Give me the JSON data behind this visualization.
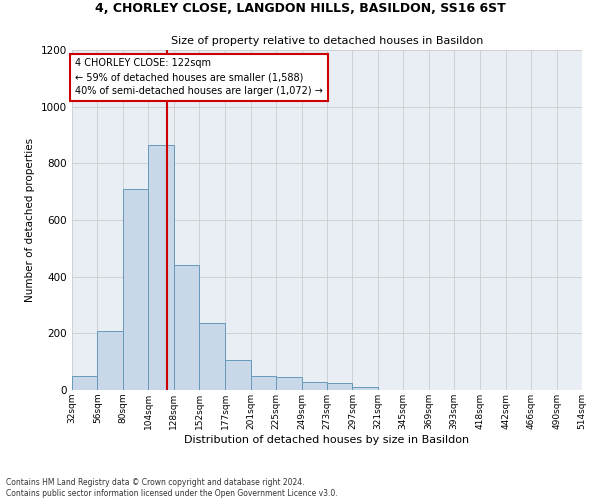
{
  "title1": "4, CHORLEY CLOSE, LANGDON HILLS, BASILDON, SS16 6ST",
  "title2": "Size of property relative to detached houses in Basildon",
  "xlabel": "Distribution of detached houses by size in Basildon",
  "ylabel": "Number of detached properties",
  "footnote": "Contains HM Land Registry data © Crown copyright and database right 2024.\nContains public sector information licensed under the Open Government Licence v3.0.",
  "bar_edges": [
    32,
    56,
    80,
    104,
    128,
    152,
    177,
    201,
    225,
    249,
    273,
    297,
    321,
    345,
    369,
    393,
    418,
    442,
    466,
    490,
    514
  ],
  "bar_heights": [
    50,
    210,
    710,
    865,
    440,
    235,
    105,
    50,
    45,
    30,
    25,
    10,
    0,
    0,
    0,
    0,
    0,
    0,
    0,
    0
  ],
  "bar_color": "#c8d8e8",
  "bar_edge_color": "#6699bb",
  "tick_labels": [
    "32sqm",
    "56sqm",
    "80sqm",
    "104sqm",
    "128sqm",
    "152sqm",
    "177sqm",
    "201sqm",
    "225sqm",
    "249sqm",
    "273sqm",
    "297sqm",
    "321sqm",
    "345sqm",
    "369sqm",
    "393sqm",
    "418sqm",
    "442sqm",
    "466sqm",
    "490sqm",
    "514sqm"
  ],
  "ylim": [
    0,
    1200
  ],
  "yticks": [
    0,
    200,
    400,
    600,
    800,
    1000,
    1200
  ],
  "property_line_x": 122,
  "property_line_color": "#cc0000",
  "annotation_line1": "4 CHORLEY CLOSE: 122sqm",
  "annotation_line2": "← 59% of detached houses are smaller (1,588)",
  "annotation_line3": "40% of semi-detached houses are larger (1,072) →",
  "annotation_box_color": "#cc0000",
  "grid_color": "#cccccc",
  "background_color": "#e8eef4"
}
